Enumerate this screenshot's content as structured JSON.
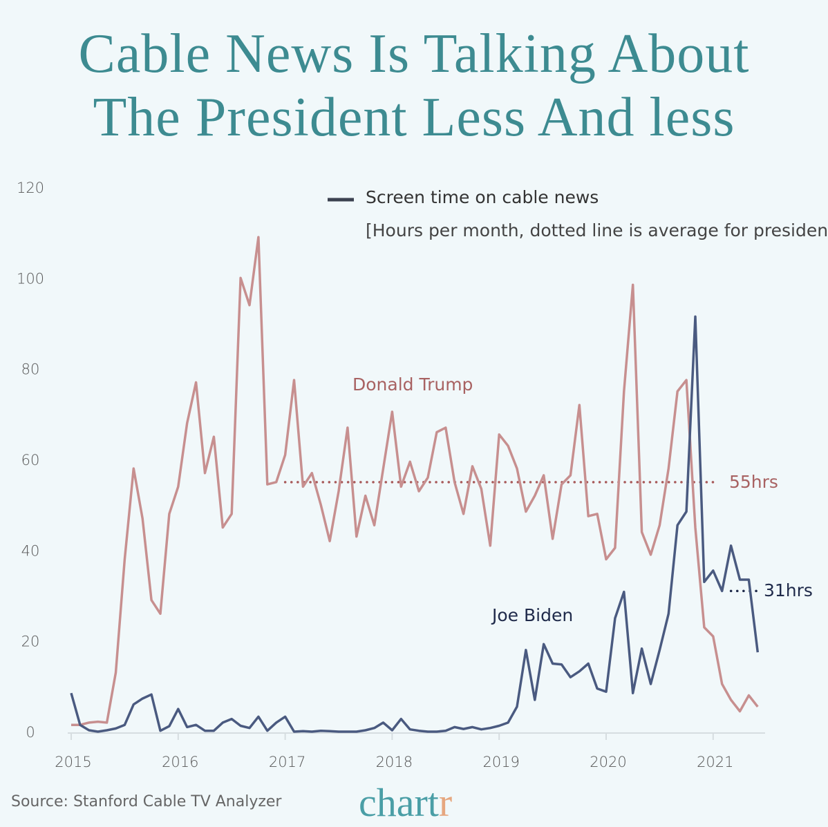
{
  "title": [
    "Cable News Is Talking About",
    "The President Less And less"
  ],
  "legend": {
    "label": "Screen time on cable news",
    "subtitle": "[Hours per month, dotted line is average for presidency]"
  },
  "source": "Source: Stanford Cable TV Analyzer",
  "logo": {
    "main": "chart",
    "accent": "r"
  },
  "colors": {
    "title": "#3d8b91",
    "trump": "#c78f8f",
    "trump_text": "#a86262",
    "biden": "#4a5a80",
    "biden_text": "#1f2a4a",
    "background": "#f1f8fa"
  },
  "chart_data": {
    "type": "line",
    "x_start": "2015-01",
    "x_interval": "month",
    "xlim": [
      "2015-01",
      "2021-06"
    ],
    "ylim": [
      0,
      120
    ],
    "yticks": [
      "0",
      "20",
      "40",
      "60",
      "80",
      "100",
      "120"
    ],
    "xticks": [
      "2015",
      "2016",
      "2017",
      "2018",
      "2019",
      "2020",
      "2021"
    ],
    "grid": false,
    "series": [
      {
        "name": "Donald Trump",
        "values": [
          1.5,
          1.5,
          2,
          2.2,
          2,
          13,
          38,
          58,
          47,
          29,
          26,
          48,
          54,
          68,
          77,
          57,
          65,
          45,
          48,
          100,
          94,
          109,
          54.5,
          55,
          61,
          77.5,
          54,
          57,
          50,
          42,
          53,
          67,
          43,
          52,
          45.5,
          58,
          70.5,
          54,
          59.5,
          53,
          56,
          66,
          67,
          55,
          48,
          58.5,
          53.5,
          41,
          65.5,
          63,
          58,
          48.5,
          52,
          56.5,
          42.5,
          54.5,
          56.5,
          72,
          47.5,
          48,
          38,
          40.5,
          75,
          98.5,
          44,
          39,
          45.5,
          58,
          75,
          77.5,
          45,
          23,
          21,
          10.5,
          7,
          4.5,
          8,
          5.5
        ],
        "average": {
          "value": 55,
          "label": "55hrs",
          "from": "2017-01",
          "to": "2020-12"
        }
      },
      {
        "name": "Joe Biden",
        "values": [
          8.5,
          1.5,
          0.3,
          0,
          0.3,
          0.7,
          1.5,
          6,
          7.3,
          8.2,
          0.2,
          1.2,
          5,
          1,
          1.5,
          0.2,
          0.2,
          2,
          2.8,
          1.3,
          0.8,
          3.3,
          0.2,
          2,
          3.3,
          0,
          0.1,
          0,
          0.2,
          0.1,
          0,
          0,
          0,
          0.3,
          0.8,
          2,
          0.3,
          2.8,
          0.5,
          0.2,
          0,
          0,
          0.2,
          1,
          0.6,
          1,
          0.5,
          0.8,
          1.3,
          2,
          5.5,
          18,
          7,
          19.3,
          15,
          14.8,
          12,
          13.3,
          15,
          9.5,
          8.8,
          25,
          30.8,
          8.5,
          18.3,
          10.5,
          18,
          26,
          45.5,
          48.5,
          91.5,
          33,
          35.5,
          31,
          41,
          33.5,
          33.5,
          17.5
        ],
        "average": {
          "value": 31,
          "label": "31hrs",
          "from": "2021-03",
          "to": "2021-06"
        }
      }
    ]
  }
}
